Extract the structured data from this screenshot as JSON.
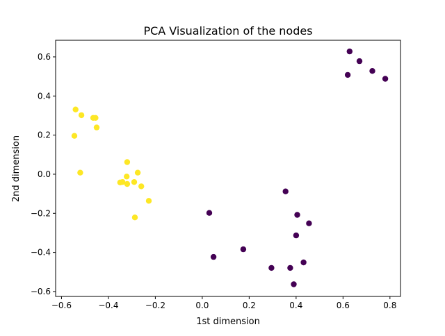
{
  "chart_data": {
    "type": "scatter",
    "title": "PCA Visualization of the nodes",
    "xlabel": "1st dimension",
    "ylabel": "2nd dimension",
    "xlim": [
      -0.625,
      0.845
    ],
    "ylim": [
      -0.625,
      0.685
    ],
    "x_ticks": [
      -0.6,
      -0.4,
      -0.2,
      0.0,
      0.2,
      0.4,
      0.6,
      0.8
    ],
    "x_tick_labels": [
      "−0.6",
      "−0.4",
      "−0.2",
      "0.0",
      "0.2",
      "0.4",
      "0.6",
      "0.8"
    ],
    "y_ticks": [
      -0.6,
      -0.4,
      -0.2,
      0.0,
      0.2,
      0.4,
      0.6
    ],
    "y_tick_labels": [
      "−0.6",
      "−0.4",
      "−0.2",
      "0.0",
      "0.2",
      "0.4",
      "0.6"
    ],
    "grid": false,
    "legend": "none",
    "series": [
      {
        "color": "#440154",
        "points": [
          [
            0.628,
            0.628
          ],
          [
            0.67,
            0.578
          ],
          [
            0.62,
            0.508
          ],
          [
            0.725,
            0.528
          ],
          [
            0.78,
            0.488
          ],
          [
            0.355,
            -0.088
          ],
          [
            0.03,
            -0.198
          ],
          [
            0.405,
            -0.208
          ],
          [
            0.455,
            -0.251
          ],
          [
            0.4,
            -0.313
          ],
          [
            0.175,
            -0.384
          ],
          [
            0.048,
            -0.423
          ],
          [
            0.432,
            -0.451
          ],
          [
            0.295,
            -0.479
          ],
          [
            0.375,
            -0.479
          ],
          [
            0.39,
            -0.563
          ]
        ]
      },
      {
        "color": "#fde725",
        "points": [
          [
            -0.54,
            0.331
          ],
          [
            -0.515,
            0.302
          ],
          [
            -0.465,
            0.288
          ],
          [
            -0.455,
            0.288
          ],
          [
            -0.45,
            0.239
          ],
          [
            -0.545,
            0.196
          ],
          [
            -0.52,
            0.008
          ],
          [
            -0.32,
            0.062
          ],
          [
            -0.275,
            0.008
          ],
          [
            -0.322,
            -0.012
          ],
          [
            -0.35,
            -0.042
          ],
          [
            -0.34,
            -0.04
          ],
          [
            -0.32,
            -0.05
          ],
          [
            -0.29,
            -0.04
          ],
          [
            -0.26,
            -0.062
          ],
          [
            -0.228,
            -0.136
          ],
          [
            -0.287,
            -0.221
          ]
        ]
      }
    ]
  }
}
